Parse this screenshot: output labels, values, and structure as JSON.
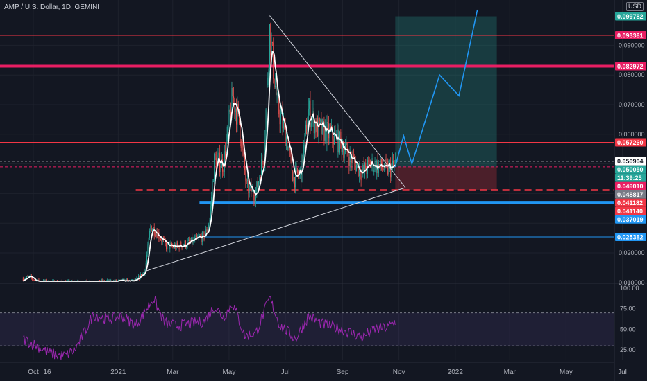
{
  "header": {
    "title": "AMP / U.S. Dollar, 1D, GEMINI",
    "currency": "USD"
  },
  "colors": {
    "background": "#131722",
    "grid": "#1e222d",
    "candle_up": "#26a69a",
    "candle_down": "#ef5350",
    "ma_line": "#ffffff",
    "resistance_red": "#f23645",
    "magenta": "#e91e63",
    "blue": "#2196f3",
    "rsi": "#9c27b0"
  },
  "price_axis": {
    "ticks": [
      "0.090000",
      "0.080000",
      "0.070000",
      "0.060000",
      "0.020000",
      "0.010000"
    ],
    "labels": [
      {
        "text": "0.099782",
        "value": 0.099782,
        "bg": "#26a69a",
        "fg": "#ffffff"
      },
      {
        "text": "0.093361",
        "value": 0.093361,
        "bg": "#e91e63",
        "fg": "#ffffff"
      },
      {
        "text": "0.082972",
        "value": 0.082972,
        "bg": "#e91e63",
        "fg": "#ffffff"
      },
      {
        "text": "0.057260",
        "value": 0.05726,
        "bg": "#f23645",
        "fg": "#ffffff"
      },
      {
        "text": "0.050904",
        "value": 0.050904,
        "bg": "#ffffff",
        "fg": "#131722"
      },
      {
        "text": "0.050050",
        "value": 0.05005,
        "bg": "#26a69a",
        "fg": "#ffffff"
      },
      {
        "text": "11:39:25",
        "value": 0.0484,
        "bg": "#26a69a",
        "fg": "#ffffff"
      },
      {
        "text": "0.049010",
        "value": 0.04901,
        "bg": "#e91e63",
        "fg": "#ffffff"
      },
      {
        "text": "0.048817",
        "value": 0.048817,
        "bg": "#787b86",
        "fg": "#ffffff"
      },
      {
        "text": "0.041182",
        "value": 0.041182,
        "bg": "#f23645",
        "fg": "#ffffff"
      },
      {
        "text": "0.041140",
        "value": 0.04114,
        "bg": "#f23645",
        "fg": "#ffffff"
      },
      {
        "text": "0.037019",
        "value": 0.037019,
        "bg": "#2196f3",
        "fg": "#ffffff"
      },
      {
        "text": "0.025382",
        "value": 0.025382,
        "bg": "#2196f3",
        "fg": "#ffffff"
      }
    ]
  },
  "rsi_axis": {
    "ticks": [
      "100.00",
      "75.00",
      "50.00",
      "25.00"
    ]
  },
  "chart_data": {
    "type": "candlestick",
    "x_ticks": [
      "Oct",
      "16",
      "2021",
      "Mar",
      "May",
      "Jul",
      "Sep",
      "Nov",
      "2022",
      "Mar",
      "May",
      "Jul"
    ],
    "price_path": [
      [
        "2020-09-20",
        0.0113
      ],
      [
        "2020-09-27",
        0.0118
      ],
      [
        "2020-10-05",
        0.0104
      ],
      [
        "2020-10-20",
        0.0101
      ],
      [
        "2020-11-10",
        0.01
      ],
      [
        "2020-12-15",
        0.0102
      ],
      [
        "2021-01-20",
        0.0105
      ],
      [
        "2021-01-30",
        0.0141
      ],
      [
        "2021-02-05",
        0.029
      ],
      [
        "2021-02-12",
        0.027
      ],
      [
        "2021-02-22",
        0.0222
      ],
      [
        "2021-03-05",
        0.022
      ],
      [
        "2021-03-20",
        0.0235
      ],
      [
        "2021-04-05",
        0.0258
      ],
      [
        "2021-04-10",
        0.031
      ],
      [
        "2021-04-15",
        0.051
      ],
      [
        "2021-04-25",
        0.05
      ],
      [
        "2021-05-05",
        0.073
      ],
      [
        "2021-05-12",
        0.064
      ],
      [
        "2021-05-20",
        0.042
      ],
      [
        "2021-05-30",
        0.04
      ],
      [
        "2021-06-08",
        0.054
      ],
      [
        "2021-06-14",
        0.095
      ],
      [
        "2021-06-22",
        0.07
      ],
      [
        "2021-07-02",
        0.059
      ],
      [
        "2021-07-10",
        0.045
      ],
      [
        "2021-07-18",
        0.047
      ],
      [
        "2021-07-26",
        0.068
      ],
      [
        "2021-08-05",
        0.062
      ],
      [
        "2021-08-18",
        0.06
      ],
      [
        "2021-08-30",
        0.057
      ],
      [
        "2021-09-10",
        0.052
      ],
      [
        "2021-09-22",
        0.047
      ],
      [
        "2021-10-02",
        0.05
      ],
      [
        "2021-10-12",
        0.049
      ],
      [
        "2021-10-22",
        0.048
      ],
      [
        "2021-10-28",
        0.05
      ]
    ],
    "ma_color": "#ffffff",
    "horizontal_levels": [
      {
        "value": 0.093361,
        "color": "#f23645",
        "style": "solid-thin"
      },
      {
        "value": 0.082972,
        "color": "#e91e63",
        "style": "solid-thick"
      },
      {
        "value": 0.05726,
        "color": "#f23645",
        "style": "solid-thin"
      },
      {
        "value": 0.050904,
        "color": "#ffffff",
        "style": "dotted"
      },
      {
        "value": 0.04901,
        "color": "#e91e63",
        "style": "dashed-thin"
      },
      {
        "value": 0.04114,
        "color": "#f23645",
        "style": "dashed-thick",
        "start": "2021-01-20"
      },
      {
        "value": 0.037019,
        "color": "#2196f3",
        "style": "solid-thick",
        "start": "2021-03-30"
      },
      {
        "value": 0.025382,
        "color": "#2196f3",
        "style": "solid-thin",
        "start": "2021-04-05"
      }
    ],
    "trendlines": [
      {
        "from": [
          "2021-06-14",
          0.1
        ],
        "to": [
          "2021-11-08",
          0.042
        ],
        "color": "#d1d4dc"
      },
      {
        "from": [
          "2021-02-01",
          0.014
        ],
        "to": [
          "2021-11-08",
          0.042
        ],
        "color": "#d1d4dc"
      }
    ],
    "position_zone": {
      "start": "2021-10-28",
      "end": "2022-02-15",
      "entry": 0.04901,
      "target": 0.099782,
      "stop": 0.04114
    },
    "projection": [
      [
        "2021-10-28",
        0.049
      ],
      [
        "2021-11-06",
        0.0595
      ],
      [
        "2021-11-15",
        0.05
      ],
      [
        "2021-12-15",
        0.08
      ],
      [
        "2022-01-05",
        0.073
      ],
      [
        "2022-01-25",
        0.102
      ]
    ],
    "rsi": {
      "levels": [
        70,
        30
      ],
      "ylim": [
        0,
        100
      ],
      "path": [
        [
          "2020-09-20",
          38
        ],
        [
          "2020-10-05",
          30
        ],
        [
          "2020-10-20",
          20
        ],
        [
          "2020-11-05",
          18
        ],
        [
          "2020-11-15",
          25
        ],
        [
          "2020-11-25",
          45
        ],
        [
          "2020-12-05",
          68
        ],
        [
          "2020-12-20",
          62
        ],
        [
          "2021-01-05",
          66
        ],
        [
          "2021-01-20",
          55
        ],
        [
          "2021-02-01",
          75
        ],
        [
          "2021-02-08",
          88
        ],
        [
          "2021-02-20",
          58
        ],
        [
          "2021-03-05",
          54
        ],
        [
          "2021-03-20",
          57
        ],
        [
          "2021-04-05",
          60
        ],
        [
          "2021-04-15",
          78
        ],
        [
          "2021-04-25",
          65
        ],
        [
          "2021-05-05",
          82
        ],
        [
          "2021-05-18",
          42
        ],
        [
          "2021-05-30",
          45
        ],
        [
          "2021-06-14",
          88
        ],
        [
          "2021-06-25",
          55
        ],
        [
          "2021-07-05",
          46
        ],
        [
          "2021-07-12",
          38
        ],
        [
          "2021-07-26",
          66
        ],
        [
          "2021-08-10",
          56
        ],
        [
          "2021-08-25",
          52
        ],
        [
          "2021-09-10",
          46
        ],
        [
          "2021-09-22",
          40
        ],
        [
          "2021-10-05",
          50
        ],
        [
          "2021-10-20",
          52
        ],
        [
          "2021-10-28",
          60
        ]
      ]
    }
  }
}
